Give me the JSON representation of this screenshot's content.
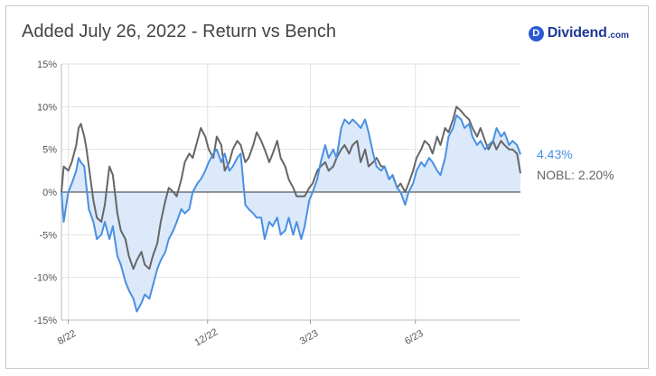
{
  "header": {
    "title": "Added July 26, 2022 - Return vs Bench"
  },
  "brand": {
    "badge_letter": "D",
    "name": "Dividend",
    "suffix": ".com"
  },
  "legend": {
    "return_label": "4.43%",
    "bench_label": "NOBL: 2.20%",
    "return_color": "#4a90e2",
    "bench_color": "#666666"
  },
  "chart_data": {
    "type": "line",
    "title": "Added July 26, 2022 - Return vs Bench",
    "yunit": "%",
    "ylim": [
      -15,
      15
    ],
    "y_ticks": [
      15,
      10,
      5,
      0,
      -5,
      -10,
      -15
    ],
    "y_tick_labels": [
      "15%",
      "10%",
      "5%",
      "0%",
      "-5%",
      "-10%",
      "-15%"
    ],
    "x_ticks": [
      "2022-08-01",
      "2022-12-01",
      "2023-03-01",
      "2023-06-01"
    ],
    "x_tick_labels": [
      "8/22",
      "12/22",
      "3/23",
      "6/23"
    ],
    "xlim": [
      "2022-07-26",
      "2023-09-01"
    ],
    "grid": true,
    "series": [
      {
        "color": "#4a90e2",
        "fill": "#dbe9fb",
        "points": [
          [
            "2022-07-26",
            0.0
          ],
          [
            "2022-07-28",
            -3.5
          ],
          [
            "2022-08-01",
            0.0
          ],
          [
            "2022-08-04",
            1.0
          ],
          [
            "2022-08-08",
            2.5
          ],
          [
            "2022-08-10",
            4.0
          ],
          [
            "2022-08-12",
            3.5
          ],
          [
            "2022-08-15",
            3.0
          ],
          [
            "2022-08-17",
            0.5
          ],
          [
            "2022-08-19",
            -2.0
          ],
          [
            "2022-08-23",
            -3.5
          ],
          [
            "2022-08-26",
            -5.5
          ],
          [
            "2022-08-30",
            -5.0
          ],
          [
            "2022-09-02",
            -3.5
          ],
          [
            "2022-09-06",
            -5.5
          ],
          [
            "2022-09-09",
            -4.0
          ],
          [
            "2022-09-13",
            -7.5
          ],
          [
            "2022-09-16",
            -8.5
          ],
          [
            "2022-09-20",
            -10.5
          ],
          [
            "2022-09-23",
            -11.5
          ],
          [
            "2022-09-27",
            -12.5
          ],
          [
            "2022-09-30",
            -14.0
          ],
          [
            "2022-10-04",
            -13.0
          ],
          [
            "2022-10-07",
            -12.0
          ],
          [
            "2022-10-11",
            -12.5
          ],
          [
            "2022-10-14",
            -11.0
          ],
          [
            "2022-10-18",
            -9.0
          ],
          [
            "2022-10-21",
            -8.0
          ],
          [
            "2022-10-25",
            -7.0
          ],
          [
            "2022-10-28",
            -5.5
          ],
          [
            "2022-11-01",
            -4.5
          ],
          [
            "2022-11-04",
            -3.5
          ],
          [
            "2022-11-08",
            -2.0
          ],
          [
            "2022-11-11",
            -2.5
          ],
          [
            "2022-11-15",
            -2.0
          ],
          [
            "2022-11-18",
            0.0
          ],
          [
            "2022-11-22",
            1.0
          ],
          [
            "2022-11-25",
            1.5
          ],
          [
            "2022-11-29",
            2.5
          ],
          [
            "2022-12-02",
            3.5
          ],
          [
            "2022-12-06",
            4.5
          ],
          [
            "2022-12-09",
            5.0
          ],
          [
            "2022-12-13",
            3.5
          ],
          [
            "2022-12-16",
            4.5
          ],
          [
            "2022-12-20",
            2.5
          ],
          [
            "2022-12-23",
            3.0
          ],
          [
            "2022-12-27",
            4.0
          ],
          [
            "2022-12-30",
            4.5
          ],
          [
            "2023-01-03",
            -1.5
          ],
          [
            "2023-01-06",
            -2.0
          ],
          [
            "2023-01-10",
            -2.5
          ],
          [
            "2023-01-13",
            -3.0
          ],
          [
            "2023-01-17",
            -3.0
          ],
          [
            "2023-01-20",
            -5.5
          ],
          [
            "2023-01-24",
            -3.5
          ],
          [
            "2023-01-27",
            -4.0
          ],
          [
            "2023-01-31",
            -3.0
          ],
          [
            "2023-02-03",
            -5.0
          ],
          [
            "2023-02-07",
            -4.5
          ],
          [
            "2023-02-10",
            -3.0
          ],
          [
            "2023-02-14",
            -5.0
          ],
          [
            "2023-02-17",
            -3.5
          ],
          [
            "2023-02-21",
            -5.5
          ],
          [
            "2023-02-24",
            -4.0
          ],
          [
            "2023-02-28",
            -1.0
          ],
          [
            "2023-03-03",
            0.0
          ],
          [
            "2023-03-07",
            1.5
          ],
          [
            "2023-03-10",
            3.5
          ],
          [
            "2023-03-14",
            5.5
          ],
          [
            "2023-03-17",
            4.0
          ],
          [
            "2023-03-21",
            5.0
          ],
          [
            "2023-03-24",
            4.0
          ],
          [
            "2023-03-28",
            7.5
          ],
          [
            "2023-03-31",
            8.5
          ],
          [
            "2023-04-04",
            8.0
          ],
          [
            "2023-04-07",
            8.5
          ],
          [
            "2023-04-11",
            8.0
          ],
          [
            "2023-04-14",
            7.5
          ],
          [
            "2023-04-18",
            8.5
          ],
          [
            "2023-04-21",
            7.0
          ],
          [
            "2023-04-25",
            4.5
          ],
          [
            "2023-04-28",
            3.0
          ],
          [
            "2023-05-02",
            2.5
          ],
          [
            "2023-05-05",
            3.0
          ],
          [
            "2023-05-09",
            1.5
          ],
          [
            "2023-05-12",
            2.0
          ],
          [
            "2023-05-16",
            0.5
          ],
          [
            "2023-05-19",
            0.0
          ],
          [
            "2023-05-23",
            -1.5
          ],
          [
            "2023-05-26",
            0.0
          ],
          [
            "2023-05-30",
            1.0
          ],
          [
            "2023-06-02",
            2.5
          ],
          [
            "2023-06-06",
            3.5
          ],
          [
            "2023-06-09",
            3.0
          ],
          [
            "2023-06-13",
            4.0
          ],
          [
            "2023-06-16",
            3.5
          ],
          [
            "2023-06-20",
            2.5
          ],
          [
            "2023-06-23",
            2.0
          ],
          [
            "2023-06-27",
            4.0
          ],
          [
            "2023-06-30",
            6.5
          ],
          [
            "2023-07-04",
            7.5
          ],
          [
            "2023-07-07",
            9.0
          ],
          [
            "2023-07-11",
            8.5
          ],
          [
            "2023-07-14",
            7.5
          ],
          [
            "2023-07-18",
            8.0
          ],
          [
            "2023-07-21",
            6.5
          ],
          [
            "2023-07-25",
            5.5
          ],
          [
            "2023-07-28",
            6.0
          ],
          [
            "2023-08-01",
            5.0
          ],
          [
            "2023-08-04",
            5.5
          ],
          [
            "2023-08-08",
            6.0
          ],
          [
            "2023-08-11",
            7.5
          ],
          [
            "2023-08-15",
            6.5
          ],
          [
            "2023-08-18",
            7.0
          ],
          [
            "2023-08-22",
            5.5
          ],
          [
            "2023-08-25",
            6.0
          ],
          [
            "2023-08-29",
            5.5
          ],
          [
            "2023-09-01",
            4.43
          ]
        ]
      },
      {
        "name": "NOBL",
        "color": "#666666",
        "points": [
          [
            "2022-07-26",
            0.0
          ],
          [
            "2022-07-28",
            3.0
          ],
          [
            "2022-08-01",
            2.5
          ],
          [
            "2022-08-04",
            3.5
          ],
          [
            "2022-08-08",
            5.5
          ],
          [
            "2022-08-10",
            7.5
          ],
          [
            "2022-08-12",
            8.0
          ],
          [
            "2022-08-15",
            6.5
          ],
          [
            "2022-08-17",
            5.0
          ],
          [
            "2022-08-19",
            3.0
          ],
          [
            "2022-08-23",
            -1.0
          ],
          [
            "2022-08-26",
            -3.0
          ],
          [
            "2022-08-30",
            -3.5
          ],
          [
            "2022-09-02",
            -1.5
          ],
          [
            "2022-09-06",
            3.0
          ],
          [
            "2022-09-09",
            2.0
          ],
          [
            "2022-09-13",
            -2.5
          ],
          [
            "2022-09-16",
            -4.5
          ],
          [
            "2022-09-20",
            -5.5
          ],
          [
            "2022-09-23",
            -7.5
          ],
          [
            "2022-09-27",
            -9.0
          ],
          [
            "2022-09-30",
            -8.0
          ],
          [
            "2022-10-04",
            -7.0
          ],
          [
            "2022-10-07",
            -8.5
          ],
          [
            "2022-10-11",
            -9.0
          ],
          [
            "2022-10-14",
            -7.5
          ],
          [
            "2022-10-18",
            -6.0
          ],
          [
            "2022-10-21",
            -3.5
          ],
          [
            "2022-10-25",
            -1.0
          ],
          [
            "2022-10-28",
            0.5
          ],
          [
            "2022-11-01",
            0.0
          ],
          [
            "2022-11-04",
            -0.5
          ],
          [
            "2022-11-08",
            1.5
          ],
          [
            "2022-11-11",
            3.5
          ],
          [
            "2022-11-15",
            4.5
          ],
          [
            "2022-11-18",
            4.0
          ],
          [
            "2022-11-22",
            6.0
          ],
          [
            "2022-11-25",
            7.5
          ],
          [
            "2022-11-29",
            6.5
          ],
          [
            "2022-12-02",
            5.0
          ],
          [
            "2022-12-06",
            4.0
          ],
          [
            "2022-12-09",
            6.5
          ],
          [
            "2022-12-13",
            5.5
          ],
          [
            "2022-12-16",
            2.5
          ],
          [
            "2022-12-20",
            3.5
          ],
          [
            "2022-12-23",
            5.0
          ],
          [
            "2022-12-27",
            6.0
          ],
          [
            "2022-12-30",
            5.5
          ],
          [
            "2023-01-03",
            3.5
          ],
          [
            "2023-01-06",
            4.0
          ],
          [
            "2023-01-10",
            5.5
          ],
          [
            "2023-01-13",
            7.0
          ],
          [
            "2023-01-17",
            6.0
          ],
          [
            "2023-01-20",
            5.0
          ],
          [
            "2023-01-24",
            3.5
          ],
          [
            "2023-01-27",
            4.5
          ],
          [
            "2023-01-31",
            6.0
          ],
          [
            "2023-02-03",
            4.0
          ],
          [
            "2023-02-07",
            3.0
          ],
          [
            "2023-02-10",
            1.5
          ],
          [
            "2023-02-14",
            0.5
          ],
          [
            "2023-02-17",
            -0.5
          ],
          [
            "2023-02-21",
            -0.5
          ],
          [
            "2023-02-24",
            -0.5
          ],
          [
            "2023-02-28",
            0.5
          ],
          [
            "2023-03-03",
            1.0
          ],
          [
            "2023-03-07",
            2.5
          ],
          [
            "2023-03-10",
            3.0
          ],
          [
            "2023-03-14",
            3.5
          ],
          [
            "2023-03-17",
            2.5
          ],
          [
            "2023-03-21",
            3.0
          ],
          [
            "2023-03-24",
            4.0
          ],
          [
            "2023-03-28",
            5.0
          ],
          [
            "2023-03-31",
            5.5
          ],
          [
            "2023-04-04",
            4.5
          ],
          [
            "2023-04-07",
            5.5
          ],
          [
            "2023-04-11",
            6.0
          ],
          [
            "2023-04-14",
            3.5
          ],
          [
            "2023-04-18",
            5.0
          ],
          [
            "2023-04-21",
            3.0
          ],
          [
            "2023-04-25",
            3.5
          ],
          [
            "2023-04-28",
            4.0
          ],
          [
            "2023-05-02",
            3.0
          ],
          [
            "2023-05-05",
            3.0
          ],
          [
            "2023-05-09",
            1.5
          ],
          [
            "2023-05-12",
            2.0
          ],
          [
            "2023-05-16",
            0.5
          ],
          [
            "2023-05-19",
            1.0
          ],
          [
            "2023-05-23",
            0.0
          ],
          [
            "2023-05-26",
            1.0
          ],
          [
            "2023-05-30",
            2.5
          ],
          [
            "2023-06-02",
            4.0
          ],
          [
            "2023-06-06",
            5.0
          ],
          [
            "2023-06-09",
            6.0
          ],
          [
            "2023-06-13",
            5.5
          ],
          [
            "2023-06-16",
            4.5
          ],
          [
            "2023-06-20",
            6.5
          ],
          [
            "2023-06-23",
            5.5
          ],
          [
            "2023-06-27",
            7.5
          ],
          [
            "2023-06-30",
            7.0
          ],
          [
            "2023-07-04",
            8.5
          ],
          [
            "2023-07-07",
            10.0
          ],
          [
            "2023-07-11",
            9.5
          ],
          [
            "2023-07-14",
            9.0
          ],
          [
            "2023-07-18",
            8.5
          ],
          [
            "2023-07-21",
            7.5
          ],
          [
            "2023-07-25",
            6.5
          ],
          [
            "2023-07-28",
            7.5
          ],
          [
            "2023-08-01",
            6.0
          ],
          [
            "2023-08-04",
            5.0
          ],
          [
            "2023-08-08",
            6.0
          ],
          [
            "2023-08-11",
            5.0
          ],
          [
            "2023-08-15",
            6.0
          ],
          [
            "2023-08-18",
            5.5
          ],
          [
            "2023-08-22",
            5.0
          ],
          [
            "2023-08-25",
            5.0
          ],
          [
            "2023-08-29",
            4.5
          ],
          [
            "2023-09-01",
            2.2
          ]
        ]
      }
    ]
  }
}
